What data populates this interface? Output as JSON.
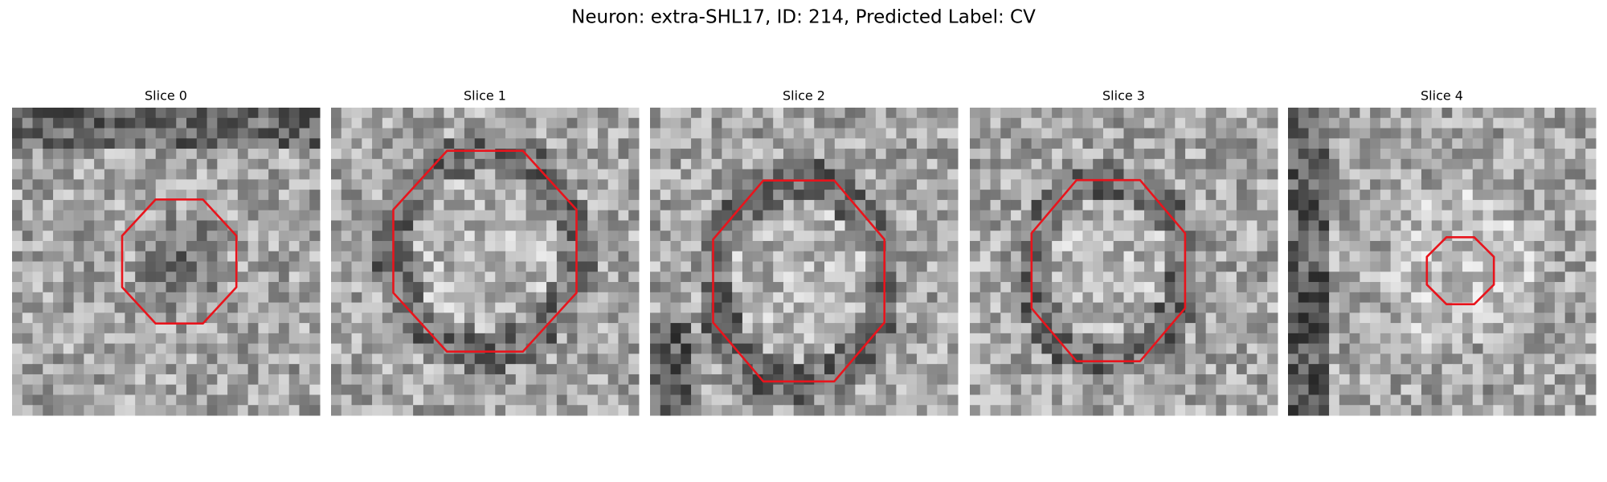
{
  "title": "Neuron: extra-SHL17, ID: 214, Predicted Label: CV",
  "panels": [
    {
      "title": "Slice 0"
    },
    {
      "title": "Slice 1"
    },
    {
      "title": "Slice 2"
    },
    {
      "title": "Slice 3"
    },
    {
      "title": "Slice 4"
    }
  ]
}
